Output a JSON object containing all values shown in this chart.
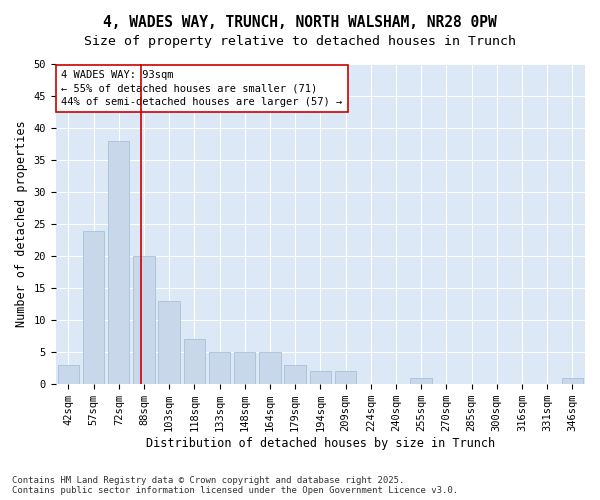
{
  "title_line1": "4, WADES WAY, TRUNCH, NORTH WALSHAM, NR28 0PW",
  "title_line2": "Size of property relative to detached houses in Trunch",
  "xlabel": "Distribution of detached houses by size in Trunch",
  "ylabel": "Number of detached properties",
  "categories": [
    "42sqm",
    "57sqm",
    "72sqm",
    "88sqm",
    "103sqm",
    "118sqm",
    "133sqm",
    "148sqm",
    "164sqm",
    "179sqm",
    "194sqm",
    "209sqm",
    "224sqm",
    "240sqm",
    "255sqm",
    "270sqm",
    "285sqm",
    "300sqm",
    "316sqm",
    "331sqm",
    "346sqm"
  ],
  "values": [
    3,
    24,
    38,
    20,
    13,
    7,
    5,
    5,
    5,
    3,
    2,
    2,
    0,
    0,
    1,
    0,
    0,
    0,
    0,
    0,
    1
  ],
  "bar_color": "#c8d8ea",
  "bar_edge_color": "#a8c0d8",
  "vline_x_index": 2.87,
  "vline_color": "#cc0000",
  "annotation_text": "4 WADES WAY: 93sqm\n← 55% of detached houses are smaller (71)\n44% of semi-detached houses are larger (57) →",
  "annotation_box_color": "#ffffff",
  "annotation_box_edge_color": "#cc0000",
  "plot_bg_color": "#dce8f5",
  "fig_bg_color": "#ffffff",
  "grid_color": "#ffffff",
  "ylim": [
    0,
    50
  ],
  "yticks": [
    0,
    5,
    10,
    15,
    20,
    25,
    30,
    35,
    40,
    45,
    50
  ],
  "footnote": "Contains HM Land Registry data © Crown copyright and database right 2025.\nContains public sector information licensed under the Open Government Licence v3.0.",
  "title_fontsize": 10.5,
  "subtitle_fontsize": 9.5,
  "label_fontsize": 8.5,
  "tick_fontsize": 7.5,
  "annotation_fontsize": 7.5,
  "footnote_fontsize": 6.5
}
